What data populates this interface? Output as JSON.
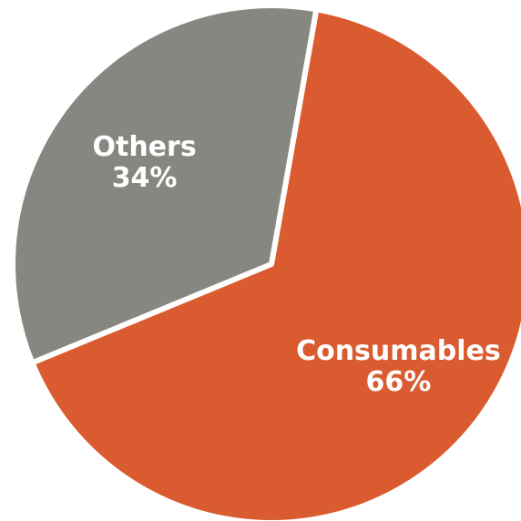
{
  "chart_data": {
    "type": "pie",
    "slices": [
      {
        "label": "Consumables",
        "value": 66,
        "value_label": "66%",
        "color": "#d95b2f"
      },
      {
        "label": "Others",
        "value": 34,
        "value_label": "34%",
        "color": "#878781"
      }
    ],
    "start_angle_deg": 80,
    "direction": "clockwise",
    "separator_color": "#ffffff"
  }
}
